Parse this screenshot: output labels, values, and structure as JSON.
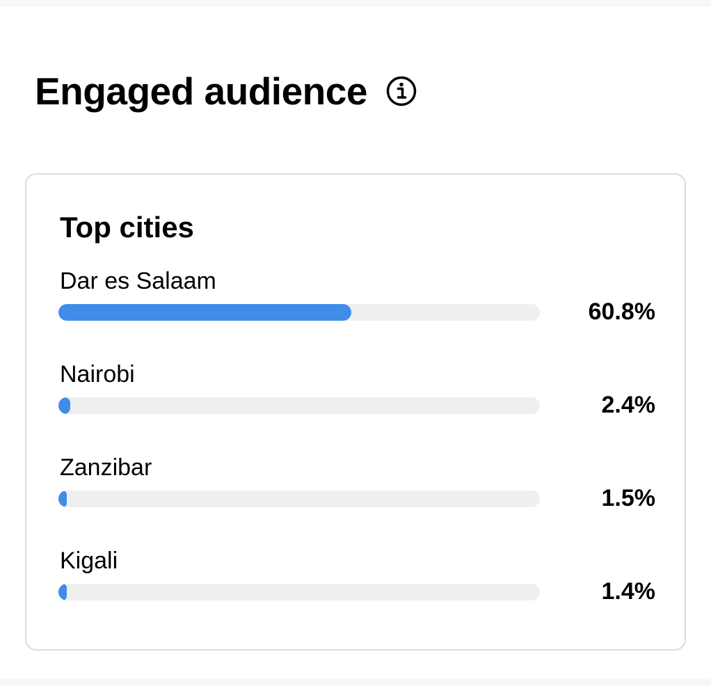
{
  "section": {
    "title": "Engaged audience",
    "info_icon": "info-circle-icon"
  },
  "card": {
    "title": "Top cities",
    "accent_color": "#3f8de8",
    "track_color": "#efefef",
    "cities": [
      {
        "name": "Dar es Salaam",
        "percent_label": "60.8%",
        "value": 60.8
      },
      {
        "name": "Nairobi",
        "percent_label": "2.4%",
        "value": 2.4
      },
      {
        "name": "Zanzibar",
        "percent_label": "1.5%",
        "value": 1.5
      },
      {
        "name": "Kigali",
        "percent_label": "1.4%",
        "value": 1.4
      }
    ]
  }
}
